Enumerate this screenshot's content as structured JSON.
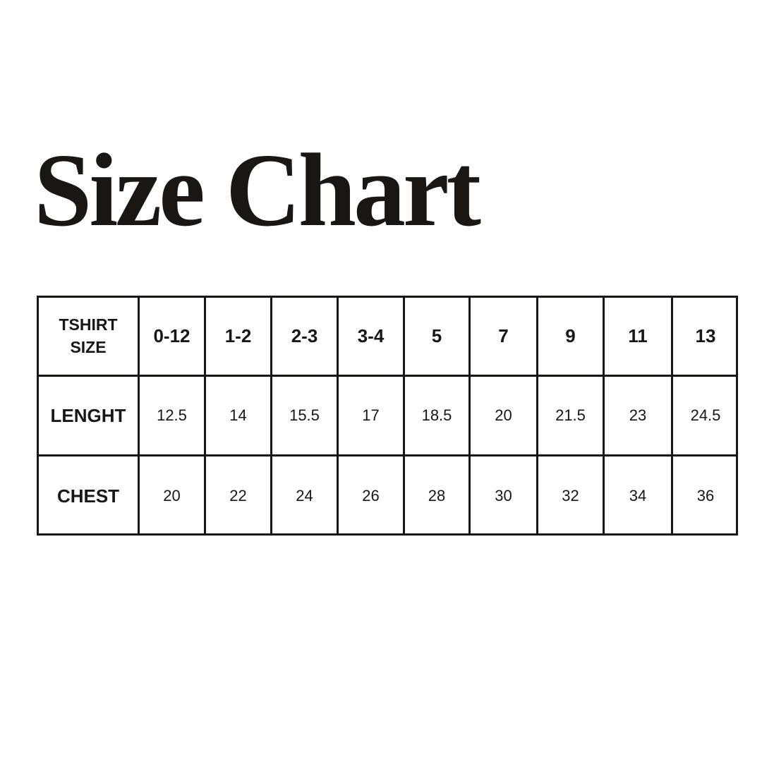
{
  "title": "Size Chart",
  "table": {
    "corner_label": [
      "TSHIRT",
      "SIZE"
    ],
    "sizes": [
      "0-12",
      "1-2",
      "2-3",
      "3-4",
      "5",
      "7",
      "9",
      "11",
      "13"
    ],
    "rows": [
      {
        "label": "LENGHT",
        "values": [
          "12.5",
          "14",
          "15.5",
          "17",
          "18.5",
          "20",
          "21.5",
          "23",
          "24.5"
        ]
      },
      {
        "label": "CHEST",
        "values": [
          "20",
          "22",
          "24",
          "26",
          "28",
          "30",
          "32",
          "34",
          "36"
        ]
      }
    ]
  }
}
